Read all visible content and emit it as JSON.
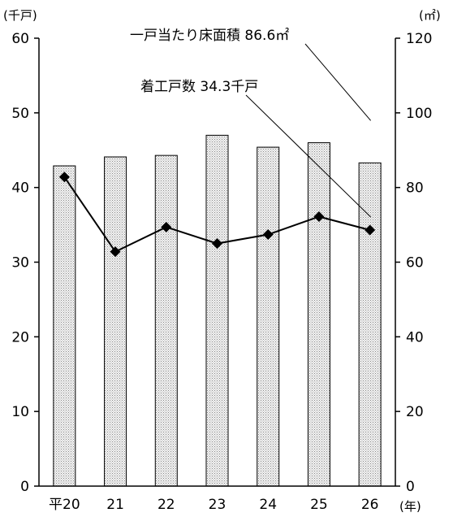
{
  "chart_data": {
    "type": "bar",
    "categories": [
      "平20",
      "21",
      "22",
      "23",
      "24",
      "25",
      "26"
    ],
    "x_unit": "(年)",
    "left_axis": {
      "unit": "(千戸)",
      "ylim": [
        0,
        60
      ],
      "ticks": [
        0,
        10,
        20,
        30,
        40,
        50,
        60
      ]
    },
    "right_axis": {
      "unit": "(㎡)",
      "ylim": [
        0,
        120
      ],
      "ticks": [
        0,
        20,
        40,
        60,
        80,
        100,
        120
      ]
    },
    "series": [
      {
        "kind": "bar",
        "axis": "right",
        "values": [
          85.8,
          88.2,
          88.6,
          94.0,
          90.8,
          92.0,
          86.6
        ],
        "fill": "#d6d6d6",
        "stroke": "#000000"
      },
      {
        "kind": "line",
        "axis": "left",
        "marker": "diamond",
        "values": [
          41.4,
          31.4,
          34.7,
          32.5,
          33.7,
          36.1,
          34.3
        ],
        "color": "#000000"
      }
    ],
    "annotations": [
      {
        "text": "一戸当たり床面積  86.6㎡",
        "series": 0,
        "point": 6
      },
      {
        "text": "着工戸数  34.3千戸",
        "series": 1,
        "point": 6
      }
    ],
    "grid": false
  }
}
